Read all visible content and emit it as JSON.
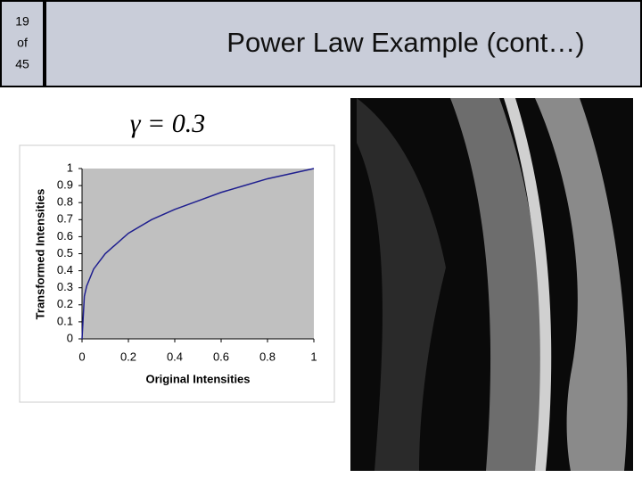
{
  "slide_number": {
    "current": "19",
    "separator": "of",
    "total": "45"
  },
  "title": "Power Law Example (cont…)",
  "chart_data": {
    "type": "line",
    "annotation": "γ = 0.3",
    "xlabel": "Original Intensities",
    "ylabel": "Transformed Intensities",
    "x": [
      0,
      0.01,
      0.02,
      0.05,
      0.1,
      0.2,
      0.3,
      0.4,
      0.5,
      0.6,
      0.7,
      0.8,
      0.9,
      1
    ],
    "values": [
      0,
      0.25,
      0.31,
      0.41,
      0.5,
      0.62,
      0.7,
      0.76,
      0.81,
      0.86,
      0.9,
      0.94,
      0.97,
      1
    ],
    "color": "#1f1f8f",
    "xlim": [
      0,
      1
    ],
    "xticks": [
      0,
      0.2,
      0.4,
      0.6,
      0.8,
      1
    ],
    "ylim": [
      0,
      1
    ],
    "yticks": [
      0,
      0.1,
      0.2,
      0.3,
      0.4,
      0.5,
      0.6,
      0.7,
      0.8,
      0.9,
      1
    ],
    "grid": false
  }
}
